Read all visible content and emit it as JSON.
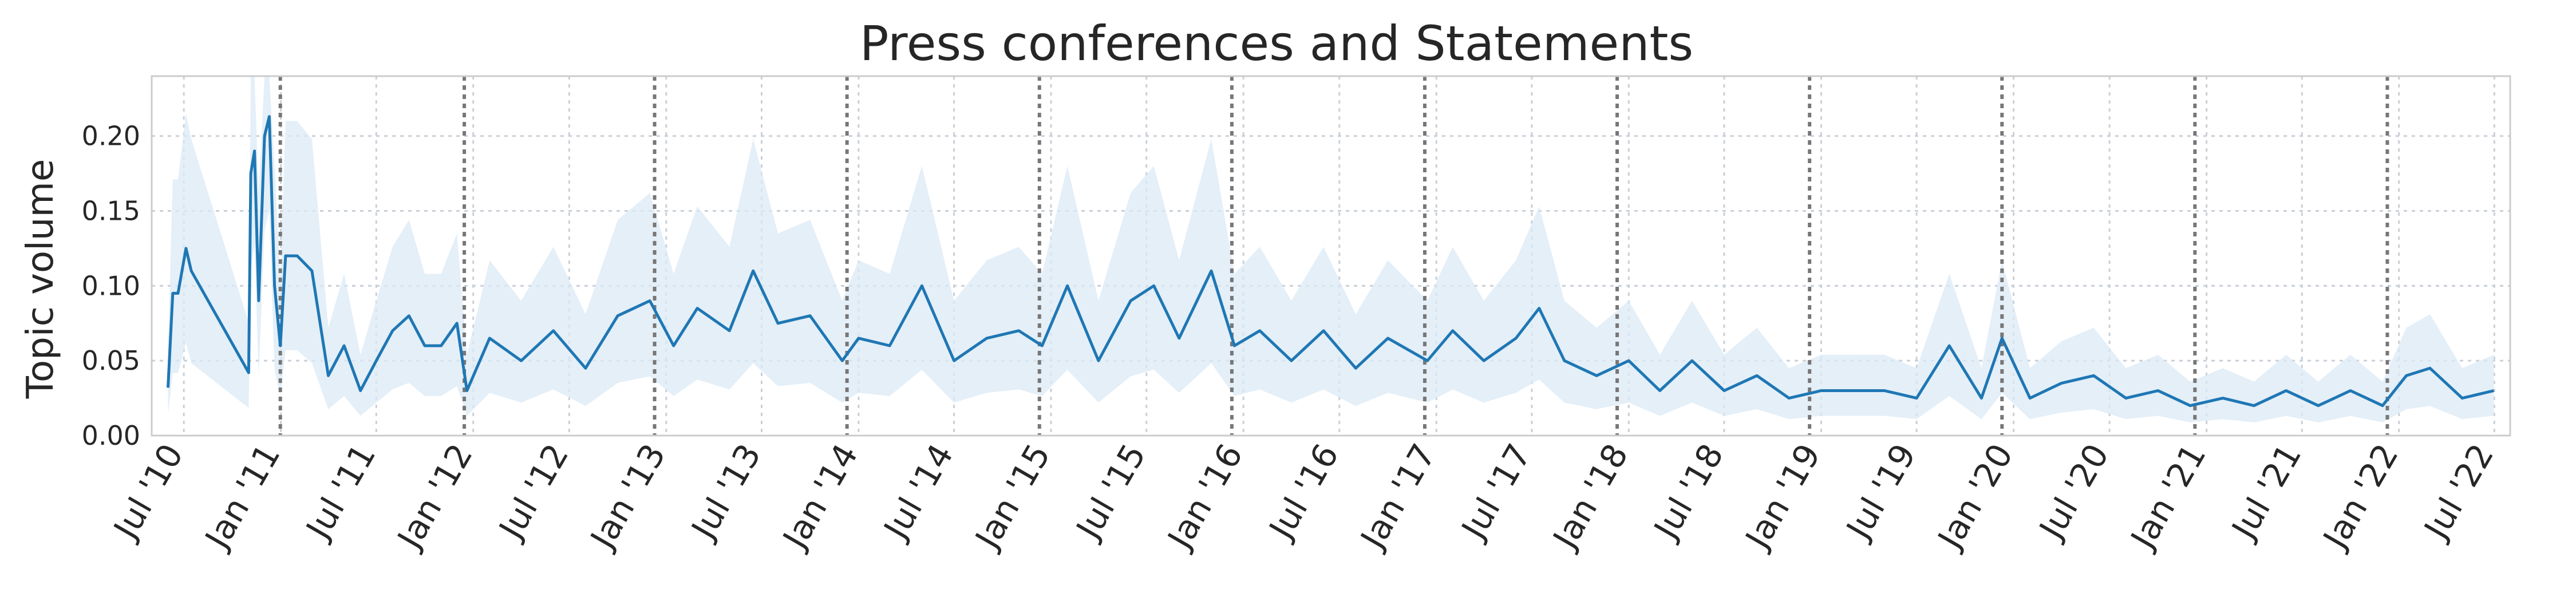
{
  "chart_data": {
    "type": "line",
    "title": "Press conferences and Statements",
    "xlabel": "",
    "ylabel": "Topic volume",
    "xlim": [
      "2010-05-01",
      "2022-07-31"
    ],
    "ylim": [
      0,
      0.24
    ],
    "yticks": [
      0,
      0.05,
      0.1,
      0.15,
      0.2
    ],
    "ytick_labels": [
      "0.00",
      "0.05",
      "0.10",
      "0.15",
      "0.20"
    ],
    "xticks": [
      "2010-07-01",
      "2011-01-01",
      "2011-07-01",
      "2012-01-01",
      "2012-07-01",
      "2013-01-01",
      "2013-07-01",
      "2014-01-01",
      "2014-07-01",
      "2015-01-01",
      "2015-07-01",
      "2016-01-01",
      "2016-07-01",
      "2017-01-01",
      "2017-07-01",
      "2018-01-01",
      "2018-07-01",
      "2019-01-01",
      "2019-07-01",
      "2020-01-01",
      "2020-07-01",
      "2021-01-01",
      "2021-07-01",
      "2022-01-01",
      "2022-07-01"
    ],
    "xtick_labels": [
      "Jul '10",
      "Jan '11",
      "Jul '11",
      "Jan '12",
      "Jul '12",
      "Jan '13",
      "Jul '13",
      "Jan '14",
      "Jul '14",
      "Jan '15",
      "Jul '15",
      "Jan '16",
      "Jul '16",
      "Jan '17",
      "Jul '17",
      "Jan '18",
      "Jul '18",
      "Jan '19",
      "Jul '19",
      "Jan '20",
      "Jul '20",
      "Jan '21",
      "Jul '21",
      "Jan '22",
      "Jul '22"
    ],
    "grid": true,
    "vertical_lines": [
      "2010-12-31",
      "2011-12-15",
      "2012-12-10",
      "2013-12-10",
      "2014-12-10",
      "2015-12-10",
      "2016-12-10",
      "2017-12-10",
      "2018-12-10",
      "2019-12-10",
      "2020-12-10",
      "2021-12-10"
    ],
    "colors": {
      "line": "#1f77b4",
      "band": "#dbeaf6"
    },
    "series": [
      {
        "name": "",
        "x": [
          "2010-06-01",
          "2010-06-10",
          "2010-06-20",
          "2010-07-05",
          "2010-07-15",
          "2010-11-01",
          "2010-11-05",
          "2010-11-12",
          "2010-11-20",
          "2010-12-01",
          "2010-12-10",
          "2010-12-20",
          "2010-12-31",
          "2011-01-10",
          "2011-02-01",
          "2011-03-01",
          "2011-04-01",
          "2011-05-01",
          "2011-06-01",
          "2011-07-01",
          "2011-08-01",
          "2011-09-01",
          "2011-10-01",
          "2011-11-01",
          "2011-12-01",
          "2011-12-20",
          "2012-02-01",
          "2012-04-01",
          "2012-06-01",
          "2012-08-01",
          "2012-10-01",
          "2012-12-01",
          "2013-01-15",
          "2013-03-01",
          "2013-05-01",
          "2013-06-15",
          "2013-08-01",
          "2013-10-01",
          "2013-12-01",
          "2014-01-01",
          "2014-03-01",
          "2014-05-01",
          "2014-07-01",
          "2014-09-01",
          "2014-11-01",
          "2014-12-15",
          "2015-02-01",
          "2015-04-01",
          "2015-06-01",
          "2015-07-15",
          "2015-09-01",
          "2015-11-01",
          "2015-12-15",
          "2016-02-01",
          "2016-04-01",
          "2016-06-01",
          "2016-08-01",
          "2016-10-01",
          "2016-12-15",
          "2017-02-01",
          "2017-04-01",
          "2017-06-01",
          "2017-07-15",
          "2017-09-01",
          "2017-11-01",
          "2018-01-01",
          "2018-03-01",
          "2018-05-01",
          "2018-07-01",
          "2018-09-01",
          "2018-11-01",
          "2019-01-01",
          "2019-03-01",
          "2019-05-01",
          "2019-07-01",
          "2019-09-01",
          "2019-11-01",
          "2019-12-10",
          "2020-02-01",
          "2020-04-01",
          "2020-06-01",
          "2020-08-01",
          "2020-10-01",
          "2020-12-01",
          "2021-02-01",
          "2021-04-01",
          "2021-06-01",
          "2021-08-01",
          "2021-10-01",
          "2021-12-01",
          "2022-01-15",
          "2022-03-01",
          "2022-05-01",
          "2022-06-30"
        ],
        "y": [
          0.032,
          0.095,
          0.095,
          0.125,
          0.11,
          0.042,
          0.175,
          0.19,
          0.09,
          0.2,
          0.213,
          0.1,
          0.06,
          0.12,
          0.12,
          0.11,
          0.04,
          0.06,
          0.03,
          0.05,
          0.07,
          0.08,
          0.06,
          0.06,
          0.075,
          0.03,
          0.065,
          0.05,
          0.07,
          0.045,
          0.08,
          0.09,
          0.06,
          0.085,
          0.07,
          0.11,
          0.075,
          0.08,
          0.05,
          0.065,
          0.06,
          0.1,
          0.05,
          0.065,
          0.07,
          0.06,
          0.1,
          0.05,
          0.09,
          0.1,
          0.065,
          0.11,
          0.06,
          0.07,
          0.05,
          0.07,
          0.045,
          0.065,
          0.05,
          0.07,
          0.05,
          0.065,
          0.085,
          0.05,
          0.04,
          0.05,
          0.03,
          0.05,
          0.03,
          0.04,
          0.025,
          0.03,
          0.03,
          0.03,
          0.025,
          0.06,
          0.025,
          0.065,
          0.025,
          0.035,
          0.04,
          0.025,
          0.03,
          0.02,
          0.025,
          0.02,
          0.03,
          0.02,
          0.03,
          0.02,
          0.04,
          0.045,
          0.025,
          0.03
        ]
      }
    ]
  }
}
